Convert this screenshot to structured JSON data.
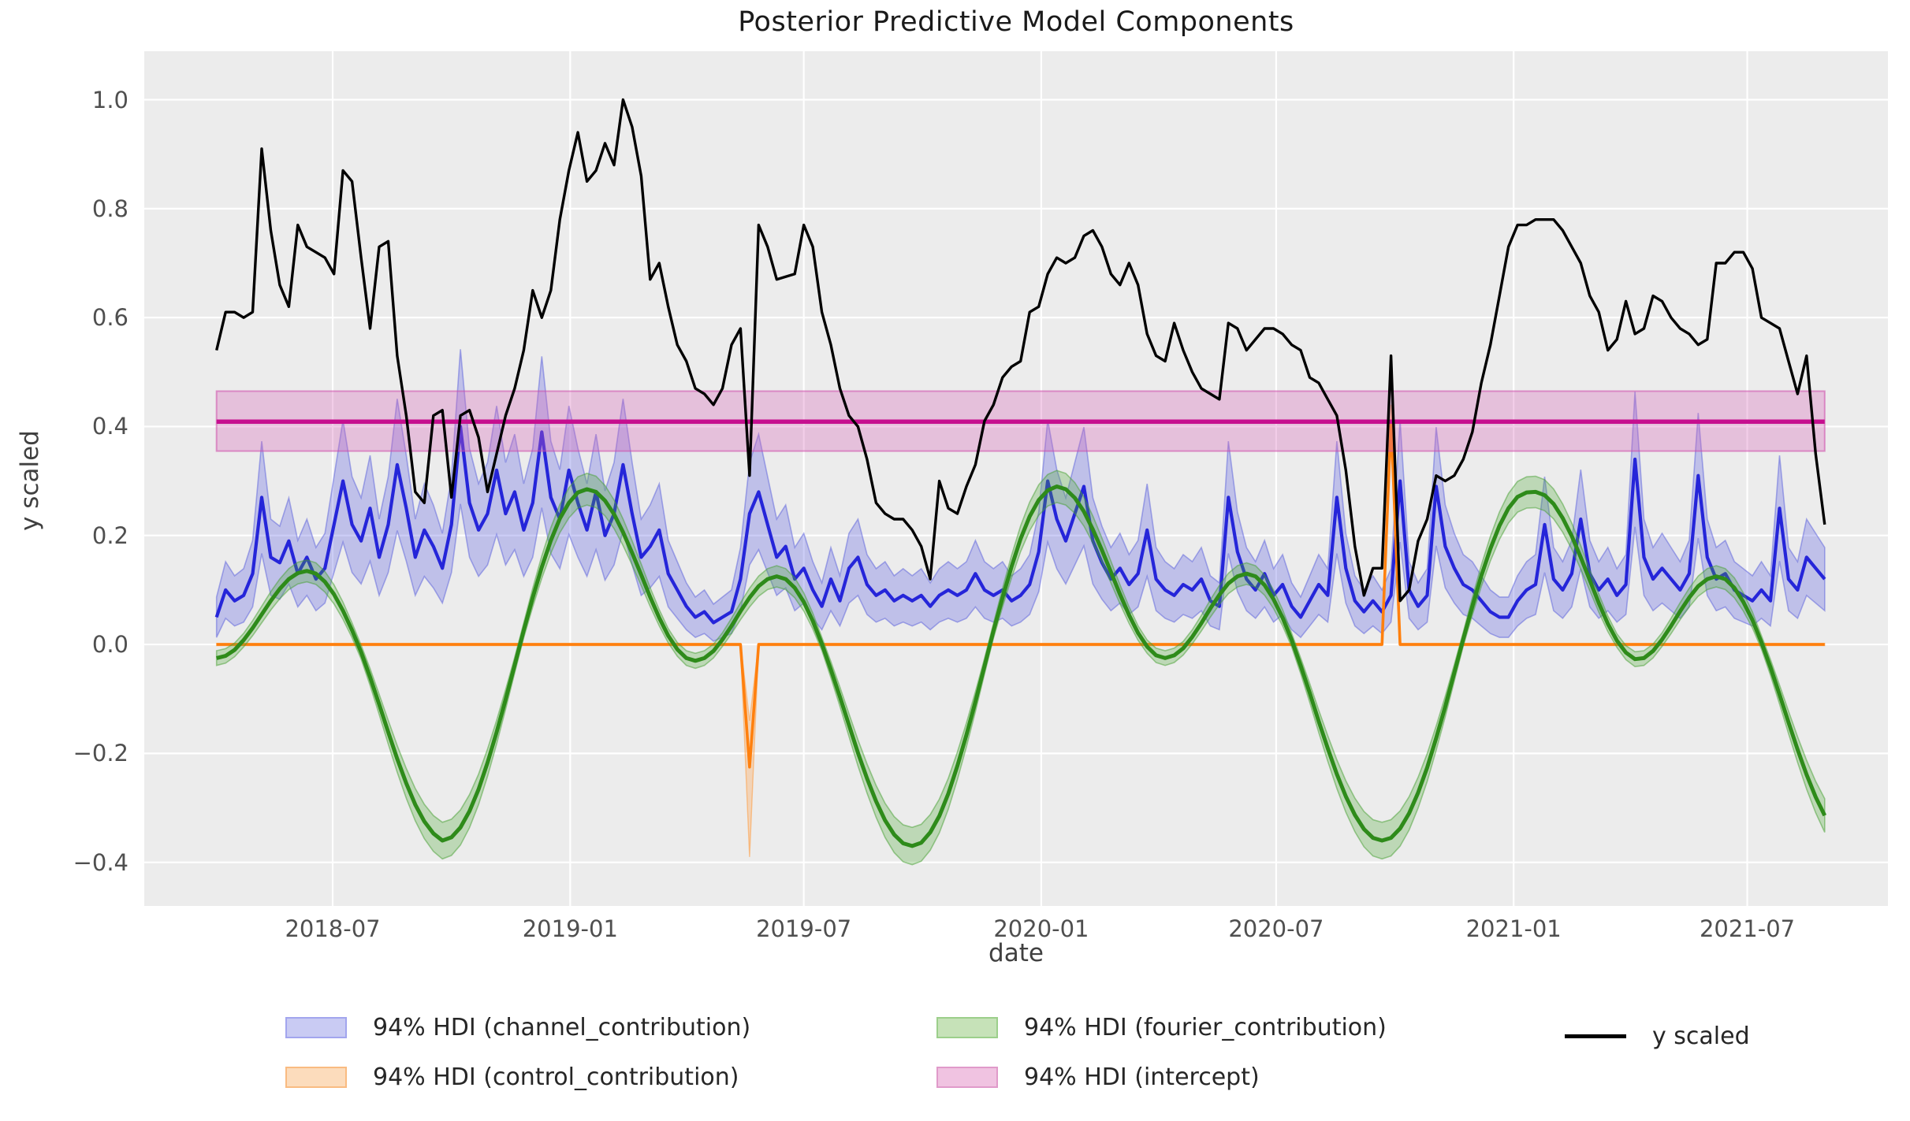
{
  "title": "Posterior Predictive Model Components",
  "xlabel": "date",
  "ylabel": "y scaled",
  "legend": [
    {
      "label": "94% HDI (channel_contribution)",
      "type": "patch",
      "fill": "#c9cbf3",
      "border": "#a2a5ee"
    },
    {
      "label": "94% HDI (control_contribution)",
      "type": "patch",
      "fill": "#fcdcbc",
      "border": "#f9bb81"
    },
    {
      "label": "94% HDI (fourier_contribution)",
      "type": "patch",
      "fill": "#c6e2b8",
      "border": "#9ccf8b"
    },
    {
      "label": "94% HDI (intercept)",
      "type": "patch",
      "fill": "#f0c3e1",
      "border": "#e09aca"
    },
    {
      "label": "y scaled",
      "type": "line",
      "color": "#000000"
    }
  ],
  "colors": {
    "axes_background": "#ececec",
    "gridline": "#ffffff",
    "y_scaled_line": "#000000",
    "channel_line": "#2525d9",
    "channel_band": "rgba(85,90,225,0.30)",
    "channel_band_edge": "rgba(90,95,220,0.50)",
    "control_line": "#ff800e",
    "control_band": "rgba(255,160,70,0.32)",
    "control_band_edge": "rgba(255,150,50,0.50)",
    "fourier_line": "#2e8b1a",
    "fourier_band": "rgba(80,170,55,0.30)",
    "fourier_band_edge": "rgba(70,160,50,0.50)",
    "intercept_line": "#c60f8f",
    "intercept_band": "rgba(215,100,185,0.32)",
    "intercept_band_edge": "rgba(205,75,170,0.55)"
  },
  "chart_data": {
    "type": "line",
    "title": "Posterior Predictive Model Components",
    "xlabel": "date",
    "ylabel": "y scaled",
    "x_start_date": "2018-04-02",
    "x_step_days": 7,
    "n_points": 179,
    "xlim_weeks": [
      -8,
      185
    ],
    "ylim": [
      -0.48,
      1.089
    ],
    "grid": true,
    "legend_position": "below",
    "x_ticks": [
      {
        "label": "2018-07",
        "week": 12.857
      },
      {
        "label": "2019-01",
        "week": 39.143
      },
      {
        "label": "2019-07",
        "week": 65.0
      },
      {
        "label": "2020-01",
        "week": 91.286
      },
      {
        "label": "2020-07",
        "week": 117.286
      },
      {
        "label": "2021-01",
        "week": 143.571
      },
      {
        "label": "2021-07",
        "week": 169.429
      }
    ],
    "y_ticks": [
      1.0,
      0.8,
      0.6,
      0.4,
      0.2,
      0.0,
      -0.2,
      -0.4
    ],
    "series": {
      "y_scaled": {
        "name": "y scaled",
        "values": [
          0.54,
          0.61,
          0.61,
          0.6,
          0.61,
          0.91,
          0.76,
          0.66,
          0.62,
          0.77,
          0.73,
          0.72,
          0.71,
          0.68,
          0.87,
          0.85,
          0.71,
          0.58,
          0.73,
          0.74,
          0.53,
          0.42,
          0.28,
          0.26,
          0.42,
          0.43,
          0.27,
          0.42,
          0.43,
          0.38,
          0.28,
          0.35,
          0.42,
          0.47,
          0.54,
          0.65,
          0.6,
          0.65,
          0.78,
          0.87,
          0.94,
          0.85,
          0.87,
          0.92,
          0.88,
          1.0,
          0.95,
          0.86,
          0.67,
          0.7,
          0.62,
          0.55,
          0.52,
          0.47,
          0.46,
          0.44,
          0.47,
          0.55,
          0.58,
          0.31,
          0.77,
          0.73,
          0.67,
          0.675,
          0.68,
          0.77,
          0.73,
          0.61,
          0.55,
          0.47,
          0.42,
          0.4,
          0.34,
          0.26,
          0.24,
          0.23,
          0.23,
          0.21,
          0.18,
          0.12,
          0.3,
          0.25,
          0.24,
          0.29,
          0.33,
          0.41,
          0.44,
          0.49,
          0.51,
          0.52,
          0.61,
          0.62,
          0.68,
          0.71,
          0.7,
          0.71,
          0.75,
          0.76,
          0.73,
          0.68,
          0.66,
          0.7,
          0.66,
          0.57,
          0.53,
          0.52,
          0.59,
          0.54,
          0.5,
          0.47,
          0.46,
          0.45,
          0.59,
          0.58,
          0.54,
          0.56,
          0.58,
          0.58,
          0.57,
          0.55,
          0.54,
          0.49,
          0.48,
          0.45,
          0.42,
          0.32,
          0.18,
          0.09,
          0.14,
          0.14,
          0.53,
          0.08,
          0.1,
          0.19,
          0.23,
          0.31,
          0.3,
          0.31,
          0.34,
          0.39,
          0.48,
          0.55,
          0.64,
          0.73,
          0.77,
          0.77,
          0.78,
          0.78,
          0.78,
          0.76,
          0.73,
          0.7,
          0.64,
          0.61,
          0.54,
          0.56,
          0.63,
          0.57,
          0.58,
          0.64,
          0.63,
          0.6,
          0.58,
          0.57,
          0.55,
          0.56,
          0.7,
          0.7,
          0.72,
          0.72,
          0.69,
          0.6,
          0.59,
          0.58,
          0.52,
          0.46,
          0.53,
          0.35,
          0.22
        ]
      },
      "channel_contribution": {
        "name": "94% HDI (channel_contribution)",
        "hdi_halfwidth_base": 0.022,
        "hdi_halfwidth_scale": 0.3,
        "mean": [
          0.05,
          0.1,
          0.08,
          0.09,
          0.13,
          0.27,
          0.16,
          0.15,
          0.19,
          0.13,
          0.16,
          0.12,
          0.14,
          0.22,
          0.3,
          0.22,
          0.19,
          0.25,
          0.16,
          0.22,
          0.33,
          0.25,
          0.16,
          0.21,
          0.18,
          0.14,
          0.22,
          0.4,
          0.26,
          0.21,
          0.24,
          0.32,
          0.24,
          0.28,
          0.21,
          0.26,
          0.39,
          0.27,
          0.23,
          0.32,
          0.26,
          0.21,
          0.28,
          0.2,
          0.24,
          0.33,
          0.24,
          0.16,
          0.18,
          0.21,
          0.13,
          0.1,
          0.07,
          0.05,
          0.06,
          0.04,
          0.05,
          0.06,
          0.12,
          0.24,
          0.28,
          0.22,
          0.16,
          0.18,
          0.12,
          0.14,
          0.1,
          0.07,
          0.12,
          0.08,
          0.14,
          0.16,
          0.11,
          0.09,
          0.1,
          0.08,
          0.09,
          0.08,
          0.09,
          0.07,
          0.09,
          0.1,
          0.09,
          0.1,
          0.13,
          0.1,
          0.09,
          0.1,
          0.08,
          0.09,
          0.11,
          0.17,
          0.3,
          0.23,
          0.19,
          0.24,
          0.29,
          0.19,
          0.15,
          0.12,
          0.14,
          0.11,
          0.13,
          0.21,
          0.12,
          0.1,
          0.09,
          0.11,
          0.1,
          0.12,
          0.08,
          0.07,
          0.27,
          0.17,
          0.12,
          0.1,
          0.13,
          0.09,
          0.11,
          0.07,
          0.05,
          0.08,
          0.11,
          0.09,
          0.27,
          0.14,
          0.08,
          0.06,
          0.08,
          0.06,
          0.09,
          0.3,
          0.1,
          0.07,
          0.09,
          0.29,
          0.18,
          0.14,
          0.11,
          0.1,
          0.08,
          0.06,
          0.05,
          0.05,
          0.08,
          0.1,
          0.11,
          0.22,
          0.12,
          0.1,
          0.13,
          0.23,
          0.13,
          0.1,
          0.12,
          0.09,
          0.11,
          0.34,
          0.16,
          0.12,
          0.14,
          0.12,
          0.1,
          0.13,
          0.31,
          0.16,
          0.12,
          0.13,
          0.1,
          0.09,
          0.08,
          0.1,
          0.08,
          0.25,
          0.12,
          0.1,
          0.16,
          0.14,
          0.12
        ]
      },
      "control_contribution": {
        "name": "94% HDI (control_contribution)",
        "baseline": 0.0,
        "baseline_hdi_halfwidth": 0.002,
        "events": [
          {
            "week": 59,
            "mean": -0.225,
            "hdi_lo": -0.39,
            "hdi_hi": -0.14
          },
          {
            "week": 130,
            "mean": 0.41,
            "hdi_lo": 0.385,
            "hdi_hi": 0.44
          }
        ]
      },
      "fourier_contribution": {
        "name": "94% HDI (fourier_contribution)",
        "hdi_halfwidth_base": 0.012,
        "hdi_halfwidth_scale": 0.06,
        "mean": [
          -0.025,
          -0.021,
          -0.01,
          0.008,
          0.03,
          0.055,
          0.08,
          0.102,
          0.12,
          0.131,
          0.135,
          0.13,
          0.115,
          0.092,
          0.062,
          0.026,
          -0.014,
          -0.06,
          -0.11,
          -0.161,
          -0.21,
          -0.255,
          -0.294,
          -0.325,
          -0.347,
          -0.36,
          -0.354,
          -0.336,
          -0.306,
          -0.266,
          -0.217,
          -0.161,
          -0.101,
          -0.038,
          0.026,
          0.086,
          0.142,
          0.191,
          0.231,
          0.26,
          0.279,
          0.285,
          0.28,
          0.264,
          0.239,
          0.206,
          0.168,
          0.128,
          0.087,
          0.049,
          0.016,
          -0.009,
          -0.025,
          -0.03,
          -0.025,
          -0.012,
          0.009,
          0.034,
          0.061,
          0.086,
          0.107,
          0.12,
          0.125,
          0.12,
          0.104,
          0.078,
          0.043,
          0.001,
          -0.046,
          -0.096,
          -0.148,
          -0.199,
          -0.246,
          -0.288,
          -0.323,
          -0.349,
          -0.365,
          -0.37,
          -0.364,
          -0.345,
          -0.315,
          -0.274,
          -0.223,
          -0.166,
          -0.105,
          -0.04,
          0.025,
          0.086,
          0.143,
          0.194,
          0.235,
          0.265,
          0.283,
          0.29,
          0.285,
          0.269,
          0.244,
          0.211,
          0.173,
          0.133,
          0.092,
          0.054,
          0.021,
          -0.004,
          -0.02,
          -0.025,
          -0.02,
          -0.007,
          0.014,
          0.039,
          0.066,
          0.091,
          0.112,
          0.125,
          0.13,
          0.125,
          0.109,
          0.083,
          0.049,
          0.008,
          -0.039,
          -0.089,
          -0.141,
          -0.191,
          -0.238,
          -0.279,
          -0.313,
          -0.339,
          -0.355,
          -0.36,
          -0.355,
          -0.338,
          -0.31,
          -0.272,
          -0.226,
          -0.172,
          -0.114,
          -0.052,
          0.01,
          0.07,
          0.126,
          0.176,
          0.218,
          0.25,
          0.271,
          0.279,
          0.28,
          0.274,
          0.258,
          0.232,
          0.199,
          0.16,
          0.118,
          0.076,
          0.038,
          0.007,
          -0.015,
          -0.027,
          -0.025,
          -0.012,
          0.009,
          0.034,
          0.061,
          0.086,
          0.107,
          0.12,
          0.125,
          0.12,
          0.104,
          0.078,
          0.045,
          0.004,
          -0.042,
          -0.092,
          -0.143,
          -0.193,
          -0.239,
          -0.28,
          -0.314
        ]
      },
      "intercept": {
        "name": "94% HDI (intercept)",
        "mean": 0.409,
        "hdi_lo": 0.355,
        "hdi_hi": 0.465
      }
    }
  }
}
